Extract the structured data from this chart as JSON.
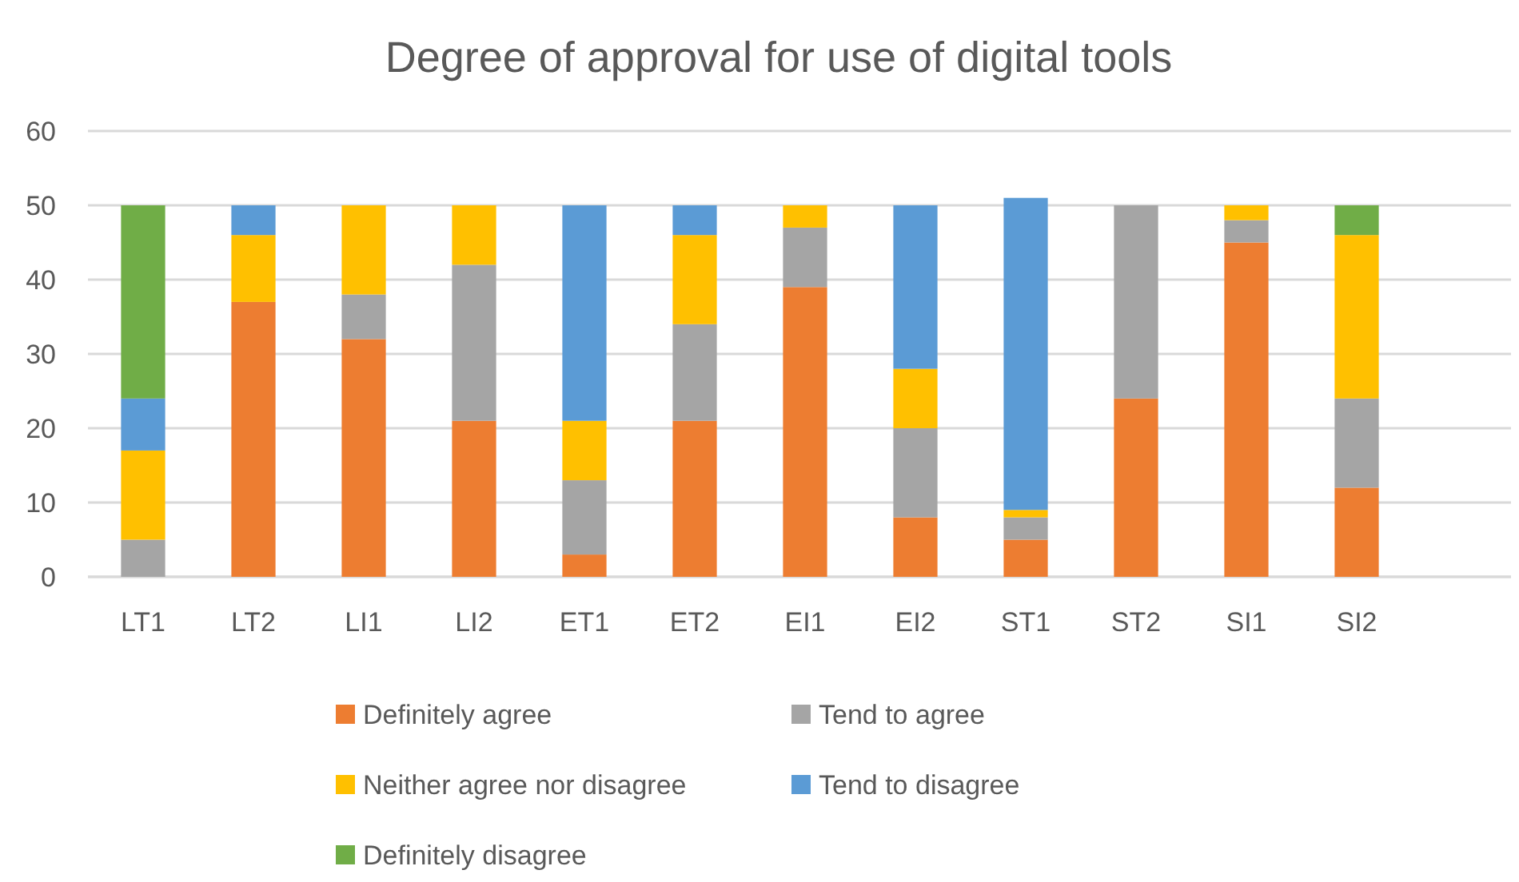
{
  "chart_data": {
    "type": "bar",
    "title": "Degree of approval for use of digital tools",
    "stacked": true,
    "categories": [
      "LT1",
      "LT2",
      "LI1",
      "LI2",
      "ET1",
      "ET2",
      "EI1",
      "EI2",
      "ST1",
      "ST2",
      "SI1",
      "SI2"
    ],
    "series": [
      {
        "name": "Definitely agree",
        "color": "#ed7d31",
        "values": [
          0,
          37,
          32,
          21,
          3,
          21,
          39,
          8,
          5,
          24,
          45,
          12
        ]
      },
      {
        "name": "Tend to agree",
        "color": "#a5a5a5",
        "values": [
          5,
          0,
          6,
          21,
          10,
          13,
          8,
          12,
          3,
          26,
          3,
          12
        ]
      },
      {
        "name": "Neither agree nor disagree",
        "color": "#ffc000",
        "values": [
          12,
          9,
          12,
          8,
          8,
          12,
          3,
          8,
          1,
          0,
          2,
          22
        ]
      },
      {
        "name": "Tend to disagree",
        "color": "#5b9bd5",
        "values": [
          7,
          4,
          0,
          0,
          29,
          4,
          0,
          22,
          42,
          0,
          0,
          0
        ]
      },
      {
        "name": "Definitely disagree",
        "color": "#70ad47",
        "values": [
          26,
          0,
          0,
          0,
          0,
          0,
          0,
          0,
          0,
          0,
          0,
          4
        ]
      }
    ],
    "ylim": [
      0,
      60
    ],
    "yticks": [
      0,
      10,
      20,
      30,
      40,
      50,
      60
    ],
    "grid": "y",
    "legend": "bottom"
  }
}
